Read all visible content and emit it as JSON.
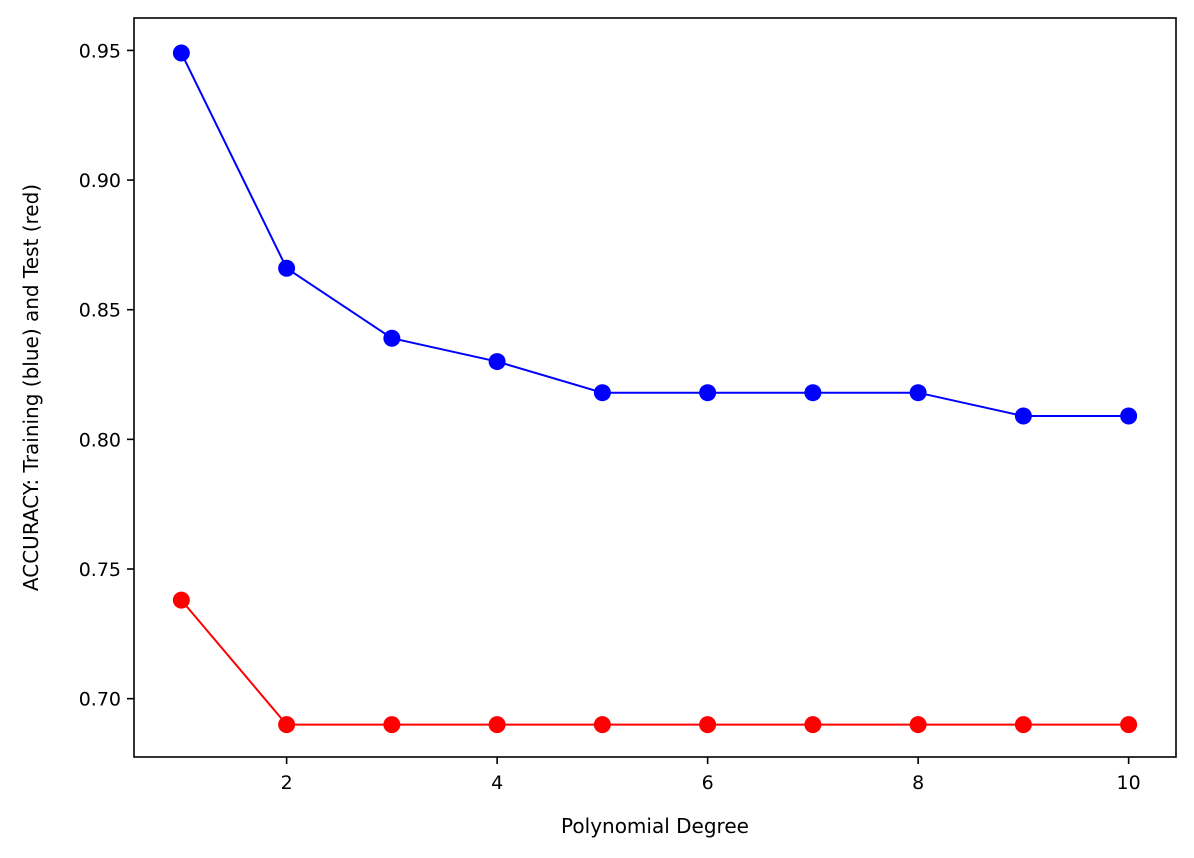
{
  "chart_data": {
    "type": "line",
    "title": "",
    "xlabel": "Polynomial Degree",
    "ylabel": "ACCURACY: Training (blue) and Test (red)",
    "x": [
      1,
      2,
      3,
      4,
      5,
      6,
      7,
      8,
      9,
      10
    ],
    "xlim": [
      0.55,
      10.45
    ],
    "ylim": [
      0.6775,
      0.9625
    ],
    "xticks": [
      2,
      4,
      6,
      8,
      10
    ],
    "yticks": [
      0.7,
      0.75,
      0.8,
      0.85,
      0.9,
      0.95
    ],
    "grid": false,
    "series": [
      {
        "color": "#0000ff",
        "values": [
          0.949,
          0.866,
          0.839,
          0.83,
          0.818,
          0.818,
          0.818,
          0.818,
          0.809,
          0.809
        ]
      },
      {
        "color": "#ff0000",
        "values": [
          0.738,
          0.69,
          0.69,
          0.69,
          0.69,
          0.69,
          0.69,
          0.69,
          0.69,
          0.69
        ]
      }
    ]
  }
}
